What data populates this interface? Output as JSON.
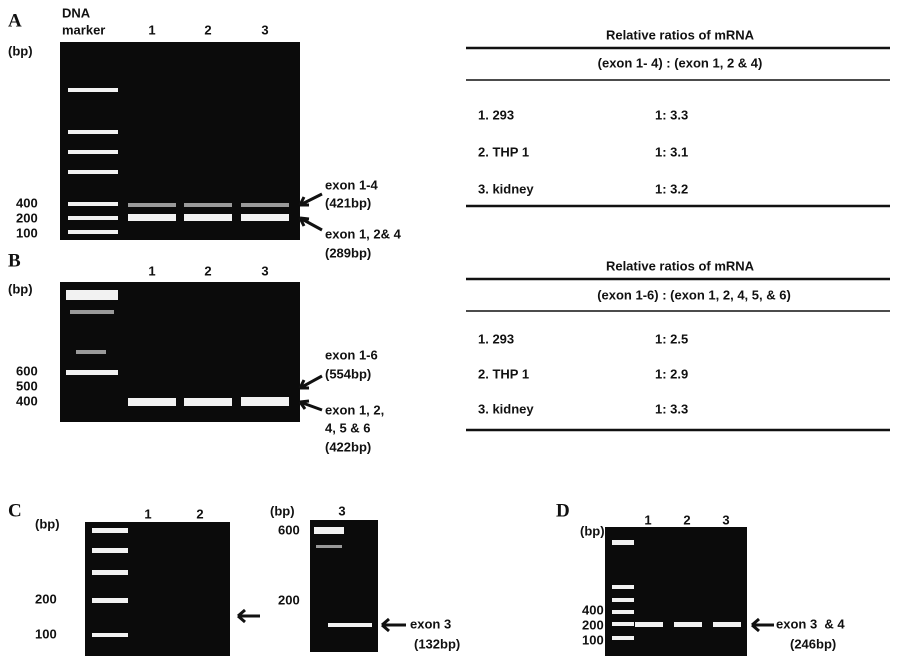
{
  "panel_a": {
    "label": "A",
    "marker_title": [
      "DNA",
      "marker"
    ],
    "unit": "(bp)",
    "lanes": [
      "1",
      "2",
      "3"
    ],
    "sizes": [
      "400",
      "200",
      "100"
    ],
    "annotations": [
      "exon 1-4",
      "(421bp)",
      "exon 1, 2& 4",
      "(289bp)"
    ],
    "table": {
      "title": "Relative ratios of mRNA",
      "header": "(exon 1- 4) : (exon 1, 2 & 4)",
      "rows": [
        [
          "1. 293",
          "1: 3.3"
        ],
        [
          "2. THP 1",
          "1: 3.1"
        ],
        [
          "3. kidney",
          "1: 3.2"
        ]
      ]
    }
  },
  "panel_b": {
    "label": "B",
    "unit": "(bp)",
    "lanes": [
      "1",
      "2",
      "3"
    ],
    "sizes": [
      "600",
      "500",
      "400"
    ],
    "annotations": [
      "exon 1-6",
      "(554bp)",
      "exon 1, 2,",
      "4, 5 & 6",
      "(422bp)"
    ],
    "table": {
      "title": "Relative ratios of mRNA",
      "header": "(exon 1-6) : (exon 1, 2, 4, 5, & 6)",
      "rows": [
        [
          "1. 293",
          "1: 2.5"
        ],
        [
          "2. THP 1",
          "1: 2.9"
        ],
        [
          "3. kidney",
          "1: 3.3"
        ]
      ]
    }
  },
  "panel_c": {
    "label": "C",
    "left_gel": {
      "unit": "(bp)",
      "lanes": [
        "1",
        "2"
      ],
      "sizes": [
        "200",
        "100"
      ]
    },
    "right_gel": {
      "unit": "(bp)",
      "lanes": [
        "3"
      ],
      "sizes": [
        "600",
        "200"
      ],
      "annotations": [
        "exon 3",
        "(132bp)"
      ]
    }
  },
  "panel_d": {
    "label": "D",
    "unit": "(bp)",
    "lanes": [
      "1",
      "2",
      "3"
    ],
    "sizes": [
      "400",
      "200",
      "100"
    ],
    "annotations": [
      "exon 3  & 4",
      "(246bp)"
    ]
  }
}
